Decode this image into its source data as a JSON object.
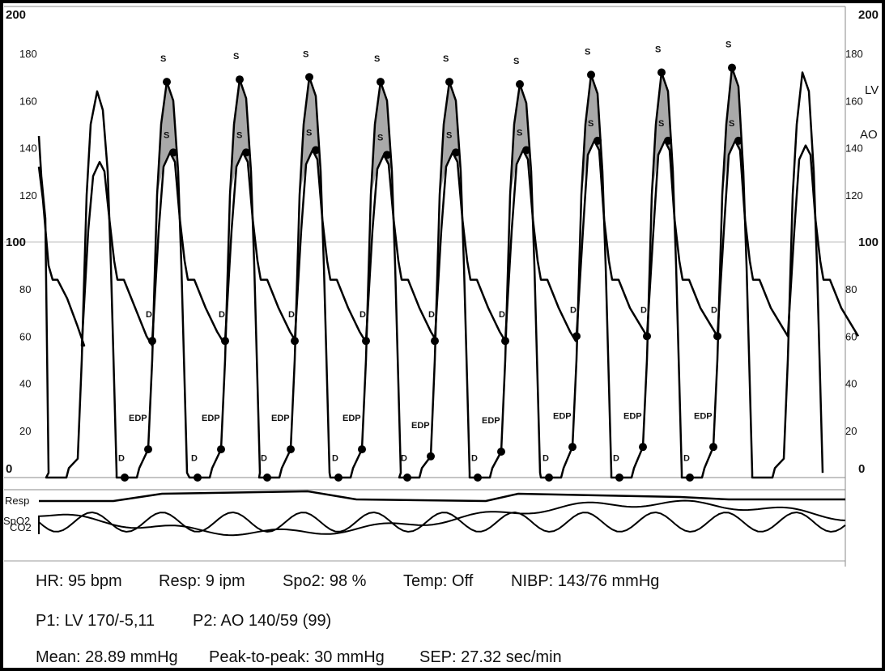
{
  "chart_data": {
    "type": "line",
    "title": "",
    "ylim": [
      0,
      200
    ],
    "left_ticks": [
      "200",
      "180",
      "160",
      "140",
      "120",
      "100",
      "80",
      "60",
      "40",
      "20",
      "0"
    ],
    "right_ticks": [
      "200",
      "180",
      "160",
      "140",
      "120",
      "100",
      "80",
      "60",
      "40",
      "20",
      "0"
    ],
    "channel_labels": {
      "lv": "LV",
      "ao": "AO"
    },
    "series": [
      {
        "name": "LV",
        "beats": [
          {
            "peak": 164,
            "edp": 0
          },
          {
            "peak": 168,
            "edp": 12
          },
          {
            "peak": 169,
            "edp": 12
          },
          {
            "peak": 170,
            "edp": 12
          },
          {
            "peak": 168,
            "edp": 12
          },
          {
            "peak": 168,
            "edp": 9
          },
          {
            "peak": 167,
            "edp": 11
          },
          {
            "peak": 171,
            "edp": 13
          },
          {
            "peak": 172,
            "edp": 13
          },
          {
            "peak": 174,
            "edp": 13
          },
          {
            "peak": 172,
            "edp": 0
          }
        ]
      },
      {
        "name": "AO",
        "beats": [
          {
            "sys": 134,
            "dia": 56
          },
          {
            "sys": 138,
            "dia": 58
          },
          {
            "sys": 138,
            "dia": 58
          },
          {
            "sys": 139,
            "dia": 58
          },
          {
            "sys": 137,
            "dia": 58
          },
          {
            "sys": 138,
            "dia": 58
          },
          {
            "sys": 139,
            "dia": 58
          },
          {
            "sys": 143,
            "dia": 60
          },
          {
            "sys": 143,
            "dia": 60
          },
          {
            "sys": 143,
            "dia": 60
          },
          {
            "sys": 141,
            "dia": 60
          }
        ]
      }
    ],
    "markers": {
      "s": "S",
      "d": "D",
      "edp": "EDP"
    },
    "lower_channels": [
      "Resp",
      "SpO2",
      "CO2"
    ]
  },
  "stats": {
    "row1": [
      "HR: 95 bpm",
      "Resp: 9 ipm",
      "Spo2: 98 %",
      "Temp: Off",
      "NIBP: 143/76 mmHg"
    ],
    "row2": [
      "P1: LV  170/-5,11",
      "P2: AO  140/59 (99)"
    ],
    "row3": [
      "Mean: 28.89 mmHg",
      "Peak-to-peak: 30 mmHg",
      "SEP: 27.32 sec/min"
    ]
  },
  "colors": {
    "trace": "#000000",
    "fill": "#a9a9a9",
    "grid": "#bdbdbd"
  }
}
